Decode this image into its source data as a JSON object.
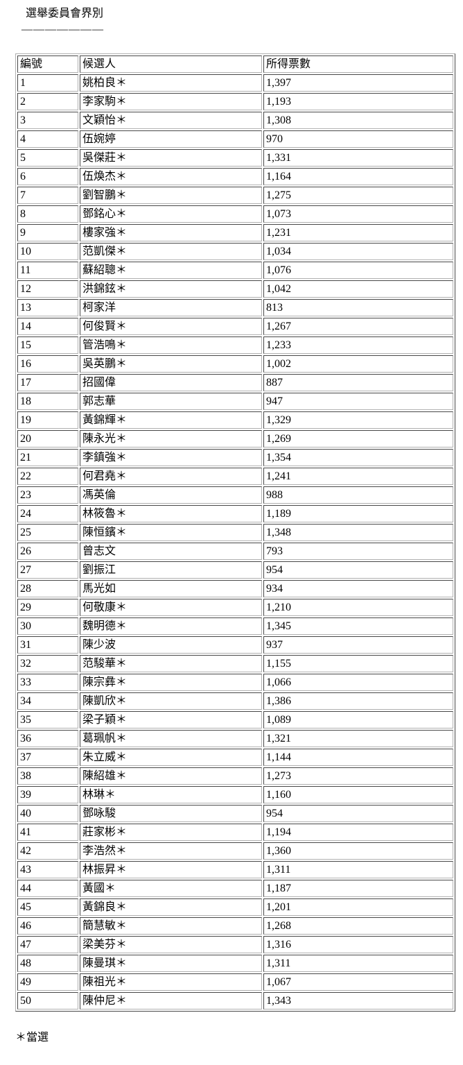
{
  "page": {
    "title": "選舉委員會界別",
    "divider": "———————",
    "footnote": "＊當選"
  },
  "table": {
    "headers": [
      "編號",
      "候選人",
      "所得票數"
    ],
    "rows": [
      [
        "1",
        "姚柏良＊",
        "1,397"
      ],
      [
        "2",
        "李家駒＊",
        "1,193"
      ],
      [
        "3",
        "文穎怡＊",
        "1,308"
      ],
      [
        "4",
        "伍婉婷",
        "970"
      ],
      [
        "5",
        "吳傑莊＊",
        "1,331"
      ],
      [
        "6",
        "伍煥杰＊",
        "1,164"
      ],
      [
        "7",
        "劉智鵬＊",
        "1,275"
      ],
      [
        "8",
        "鄧銘心＊",
        "1,073"
      ],
      [
        "9",
        "樓家強＊",
        "1,231"
      ],
      [
        "10",
        "范凱傑＊",
        "1,034"
      ],
      [
        "11",
        "蘇紹聰＊",
        "1,076"
      ],
      [
        "12",
        "洪錦鉉＊",
        "1,042"
      ],
      [
        "13",
        "柯家洋",
        "813"
      ],
      [
        "14",
        "何俊賢＊",
        "1,267"
      ],
      [
        "15",
        "管浩鳴＊",
        "1,233"
      ],
      [
        "16",
        "吳英鵬＊",
        "1,002"
      ],
      [
        "17",
        "招國偉",
        "887"
      ],
      [
        "18",
        "郭志華",
        "947"
      ],
      [
        "19",
        "黃錦輝＊",
        "1,329"
      ],
      [
        "20",
        "陳永光＊",
        "1,269"
      ],
      [
        "21",
        "李鎮強＊",
        "1,354"
      ],
      [
        "22",
        "何君堯＊",
        "1,241"
      ],
      [
        "23",
        "馮英倫",
        "988"
      ],
      [
        "24",
        "林筱魯＊",
        "1,189"
      ],
      [
        "25",
        "陳恒鑌＊",
        "1,348"
      ],
      [
        "26",
        "曾志文",
        "793"
      ],
      [
        "27",
        "劉振江",
        "954"
      ],
      [
        "28",
        "馬光如",
        "934"
      ],
      [
        "29",
        "何敬康＊",
        "1,210"
      ],
      [
        "30",
        "魏明德＊",
        "1,345"
      ],
      [
        "31",
        "陳少波",
        "937"
      ],
      [
        "32",
        "范駿華＊",
        "1,155"
      ],
      [
        "33",
        "陳宗彝＊",
        "1,066"
      ],
      [
        "34",
        "陳凱欣＊",
        "1,386"
      ],
      [
        "35",
        "梁子穎＊",
        "1,089"
      ],
      [
        "36",
        "葛珮帆＊",
        "1,321"
      ],
      [
        "37",
        "朱立威＊",
        "1,144"
      ],
      [
        "38",
        "陳紹雄＊",
        "1,273"
      ],
      [
        "39",
        "林琳＊",
        "1,160"
      ],
      [
        "40",
        "鄧咏駿",
        "954"
      ],
      [
        "41",
        "莊家彬＊",
        "1,194"
      ],
      [
        "42",
        "李浩然＊",
        "1,360"
      ],
      [
        "43",
        "林振昇＊",
        "1,311"
      ],
      [
        "44",
        "黃國＊",
        "1,187"
      ],
      [
        "45",
        "黃錦良＊",
        "1,201"
      ],
      [
        "46",
        "簡慧敏＊",
        "1,268"
      ],
      [
        "47",
        "梁美芬＊",
        "1,316"
      ],
      [
        "48",
        "陳曼琪＊",
        "1,311"
      ],
      [
        "49",
        "陳祖光＊",
        "1,067"
      ],
      [
        "50",
        "陳仲尼＊",
        "1,343"
      ]
    ]
  }
}
